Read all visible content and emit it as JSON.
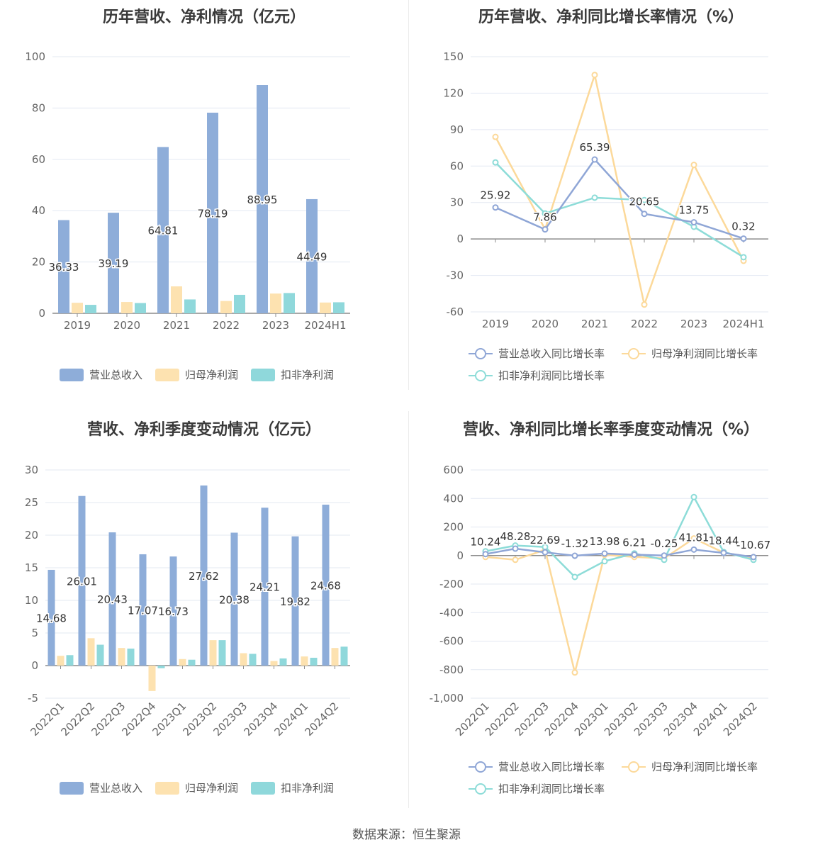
{
  "colors": {
    "revenue": "#8eadd9",
    "net_profit": "#fde2b0",
    "deducted_profit": "#8fd8db",
    "revenue_line": "#8fa6d6",
    "net_profit_line": "#fcd99a",
    "deducted_line": "#8ddcd8",
    "grid": "#e3e8f2",
    "axis": "#8c8c8c",
    "tick_text": "#666666"
  },
  "legend_bar": {
    "revenue": "营业总收入",
    "net_profit": "归母净利润",
    "deducted_profit": "扣非净利润"
  },
  "legend_line": {
    "revenue": "营业总收入同比增长率",
    "net_profit": "归母净利润同比增长率",
    "deducted_profit": "扣非净利润同比增长率"
  },
  "source": "数据来源：恒生聚源",
  "chart_data": [
    {
      "type": "bar",
      "title": "历年营收、净利情况（亿元）",
      "categories": [
        "2019",
        "2020",
        "2021",
        "2022",
        "2023",
        "2024H1"
      ],
      "ylim": [
        0,
        100
      ],
      "yticks": [
        0,
        20,
        40,
        60,
        80,
        100
      ],
      "series": [
        {
          "name": "营业总收入",
          "values": [
            36.33,
            39.19,
            64.81,
            78.19,
            88.95,
            44.49
          ],
          "labels": [
            "36.33",
            "39.19",
            "64.81",
            "78.19",
            "88.95",
            "44.49"
          ]
        },
        {
          "name": "归母净利润",
          "values": [
            4.1,
            4.4,
            10.5,
            4.8,
            7.7,
            4.2
          ]
        },
        {
          "name": "扣非净利润",
          "values": [
            3.3,
            4.0,
            5.4,
            7.2,
            7.9,
            4.3
          ]
        }
      ],
      "legend": "bottom",
      "grid": true
    },
    {
      "type": "line",
      "title": "历年营收、净利同比增长率情况（%）",
      "categories": [
        "2019",
        "2020",
        "2021",
        "2022",
        "2023",
        "2024H1"
      ],
      "ylim": [
        -60,
        150
      ],
      "yticks": [
        -60,
        -30,
        0,
        30,
        60,
        90,
        120,
        150
      ],
      "series": [
        {
          "name": "营业总收入同比增长率",
          "values": [
            25.92,
            7.86,
            65.39,
            20.65,
            13.75,
            0.32
          ],
          "labels": [
            "25.92",
            "7.86",
            "65.39",
            "20.65",
            "13.75",
            "0.32"
          ]
        },
        {
          "name": "归母净利润同比增长率",
          "values": [
            84.0,
            8.0,
            135.0,
            -54.0,
            61.0,
            -18.0
          ]
        },
        {
          "name": "扣非净利润同比增长率",
          "values": [
            63.0,
            21.0,
            34.0,
            32.0,
            10.0,
            -15.0
          ]
        }
      ],
      "legend": "bottom",
      "grid": true
    },
    {
      "type": "bar",
      "title": "营收、净利季度变动情况（亿元）",
      "categories": [
        "2022Q1",
        "2022Q2",
        "2022Q3",
        "2022Q4",
        "2023Q1",
        "2023Q2",
        "2023Q3",
        "2023Q4",
        "2024Q1",
        "2024Q2"
      ],
      "ylim": [
        -5,
        30
      ],
      "yticks": [
        -5,
        0,
        5,
        10,
        15,
        20,
        25,
        30
      ],
      "series": [
        {
          "name": "营业总收入",
          "values": [
            14.68,
            26.01,
            20.43,
            17.07,
            16.73,
            27.62,
            20.38,
            24.21,
            19.82,
            24.68
          ],
          "labels": [
            "14.68",
            "26.01",
            "20.43",
            "17.07",
            "16.73",
            "27.62",
            "20.38",
            "24.21",
            "19.82",
            "24.68"
          ]
        },
        {
          "name": "归母净利润",
          "values": [
            1.5,
            4.2,
            2.7,
            -3.9,
            1.0,
            3.9,
            1.9,
            0.7,
            1.4,
            2.7
          ]
        },
        {
          "name": "扣非净利润",
          "values": [
            1.6,
            3.2,
            2.6,
            -0.4,
            0.9,
            3.9,
            1.8,
            1.1,
            1.2,
            2.9
          ]
        }
      ],
      "legend": "bottom",
      "grid": true
    },
    {
      "type": "line",
      "title": "营收、净利同比增长率季度变动情况（%）",
      "categories": [
        "2022Q1",
        "2022Q2",
        "2022Q3",
        "2022Q4",
        "2023Q1",
        "2023Q2",
        "2023Q3",
        "2023Q4",
        "2024Q1",
        "2024Q2"
      ],
      "ylim": [
        -1000,
        600
      ],
      "yticks": [
        -1000,
        -800,
        -600,
        -400,
        -200,
        0,
        200,
        400,
        600
      ],
      "ytick_labels": [
        "-1,000",
        "-800",
        "-600",
        "-400",
        "-200",
        "0",
        "200",
        "400",
        "600"
      ],
      "series": [
        {
          "name": "营业总收入同比增长率",
          "values": [
            10.24,
            48.28,
            22.69,
            -1.32,
            13.98,
            6.21,
            -0.25,
            41.81,
            18.44,
            -10.67
          ],
          "labels": [
            "10.24",
            "48.28",
            "22.69",
            "-1.32",
            "13.98",
            "6.21",
            "-0.25",
            "41.81",
            "18.44",
            "-10.67"
          ]
        },
        {
          "name": "归母净利润同比增长率",
          "values": [
            -10,
            -30,
            40,
            -820,
            5,
            -10,
            -20,
            120,
            20,
            -15
          ]
        },
        {
          "name": "扣非净利润同比增长率",
          "values": [
            30,
            70,
            60,
            -150,
            -40,
            15,
            -30,
            410,
            25,
            -30
          ]
        }
      ],
      "legend": "bottom",
      "grid": true
    }
  ]
}
